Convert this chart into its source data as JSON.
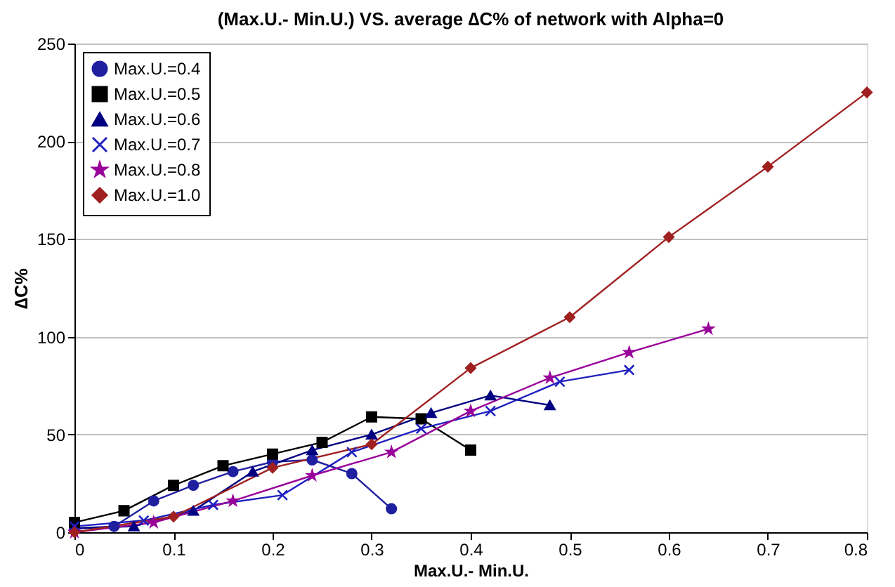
{
  "chart_data": {
    "type": "line",
    "title": "(Max.U.- Min.U.) VS. average ∆C% of network with Alpha=0",
    "xlabel": "Max.U.- Min.U.",
    "ylabel": "∆C%",
    "xlim": [
      0,
      0.8
    ],
    "xticks": [
      0,
      0.1,
      0.2,
      0.3,
      0.4,
      0.5,
      0.6,
      0.7,
      0.8
    ],
    "ylim": [
      0,
      250
    ],
    "yticks": [
      0,
      50,
      100,
      150,
      200,
      250
    ],
    "grid": "y",
    "legend": "top left",
    "series": [
      {
        "name": "Max.U.=0.4",
        "color": "#1f1fa0",
        "marker": "circle",
        "x": [
          0,
          0.04,
          0.08,
          0.12,
          0.16,
          0.2,
          0.24,
          0.28,
          0.32
        ],
        "values": [
          2,
          3,
          16,
          24,
          31,
          36,
          37,
          30,
          12
        ]
      },
      {
        "name": "Max.U.=0.5",
        "color": "#000000",
        "marker": "square",
        "x": [
          0,
          0.05,
          0.1,
          0.15,
          0.2,
          0.25,
          0.3,
          0.35,
          0.4
        ],
        "values": [
          5,
          11,
          24,
          34,
          40,
          46,
          59,
          58,
          42
        ]
      },
      {
        "name": "Max.U.=0.6",
        "color": "#000080",
        "marker": "triangle",
        "x": [
          0,
          0.06,
          0.12,
          0.18,
          0.24,
          0.3,
          0.36,
          0.42,
          0.48
        ],
        "values": [
          2,
          3,
          11,
          31,
          42,
          50,
          61,
          70,
          65
        ]
      },
      {
        "name": "Max.U.=0.7",
        "color": "#2020c0",
        "marker": "cross",
        "x": [
          0,
          0.07,
          0.14,
          0.21,
          0.28,
          0.35,
          0.42,
          0.49,
          0.56
        ],
        "values": [
          3,
          6,
          14,
          19,
          41,
          53,
          62,
          77,
          83
        ]
      },
      {
        "name": "Max.U.=0.8",
        "color": "#990099",
        "marker": "star",
        "x": [
          0,
          0.08,
          0.16,
          0.24,
          0.32,
          0.4,
          0.48,
          0.56,
          0.64
        ],
        "values": [
          0,
          5,
          16,
          29,
          41,
          62,
          79,
          92,
          104
        ]
      },
      {
        "name": "Max.U.=1.0",
        "color": "#a02020",
        "marker": "diamond",
        "x": [
          0,
          0.1,
          0.2,
          0.3,
          0.4,
          0.5,
          0.6,
          0.7,
          0.8
        ],
        "values": [
          0,
          8,
          33,
          45,
          84,
          110,
          151,
          187,
          225
        ]
      }
    ]
  }
}
